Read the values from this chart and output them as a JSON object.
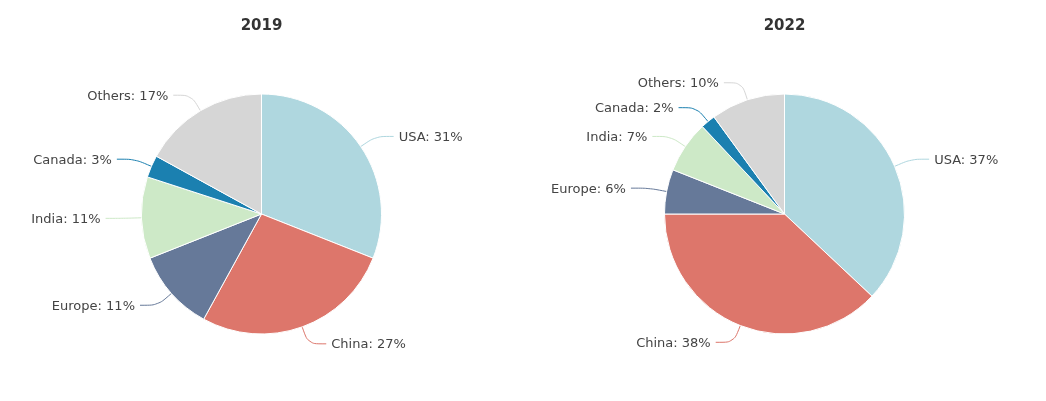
{
  "chart_data": [
    {
      "type": "pie",
      "title": "2019",
      "categories": [
        "USA",
        "China",
        "Europe",
        "India",
        "Canada",
        "Others"
      ],
      "values": [
        31,
        27,
        11,
        11,
        3,
        17
      ],
      "colors": [
        "#afd7df",
        "#dd766b",
        "#667999",
        "#cde9c7",
        "#1b80b0",
        "#d6d6d6"
      ],
      "value_labels": [
        "31%",
        "27%",
        "11%",
        "11%",
        "3%",
        "17%"
      ]
    },
    {
      "type": "pie",
      "title": "2022",
      "categories": [
        "USA",
        "China",
        "Europe",
        "India",
        "Canada",
        "Others"
      ],
      "values": [
        37,
        38,
        6,
        7,
        2,
        10
      ],
      "colors": [
        "#afd7df",
        "#dd766b",
        "#667999",
        "#cde9c7",
        "#1b80b0",
        "#d6d6d6"
      ],
      "value_labels": [
        "37%",
        "38%",
        "6%",
        "7%",
        "2%",
        "10%"
      ]
    }
  ]
}
